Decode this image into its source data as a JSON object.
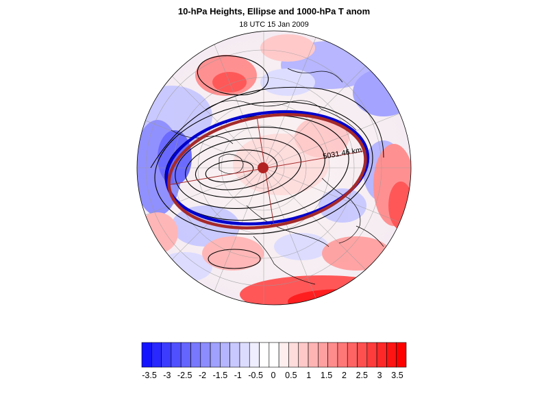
{
  "header": {
    "title": "10-hPa Heights, Ellipse and 1000-hPa T anom",
    "subtitle": "18 UTC 15 Jan 2009"
  },
  "map": {
    "projection": "polar-stereographic",
    "ellipse_label": "5031.46 km",
    "colors": {
      "ellipse_red": "#a52a2a",
      "ellipse_blue": "#0000cd",
      "contour": "#000000"
    }
  },
  "colorbar": {
    "labels": [
      "-3.5",
      "-3",
      "-2.5",
      "-2",
      "-1.5",
      "-1",
      "-0.5",
      "0",
      "0.5",
      "1",
      "1.5",
      "2",
      "2.5",
      "3",
      "3.5"
    ],
    "colors": [
      "#1414ff",
      "#2828ff",
      "#3c3cff",
      "#5050ff",
      "#6464ff",
      "#7878ff",
      "#8c8cff",
      "#a0a0ff",
      "#b4b4ff",
      "#c8c8ff",
      "#dcdcff",
      "#eeeeff",
      "#ffffff",
      "#ffffff",
      "#ffeeee",
      "#ffdcdc",
      "#ffc8c8",
      "#ffb4b4",
      "#ffa0a0",
      "#ff8c8c",
      "#ff7878",
      "#ff6464",
      "#ff5050",
      "#ff3c3c",
      "#ff2828",
      "#ff1414",
      "#ff0000"
    ]
  }
}
